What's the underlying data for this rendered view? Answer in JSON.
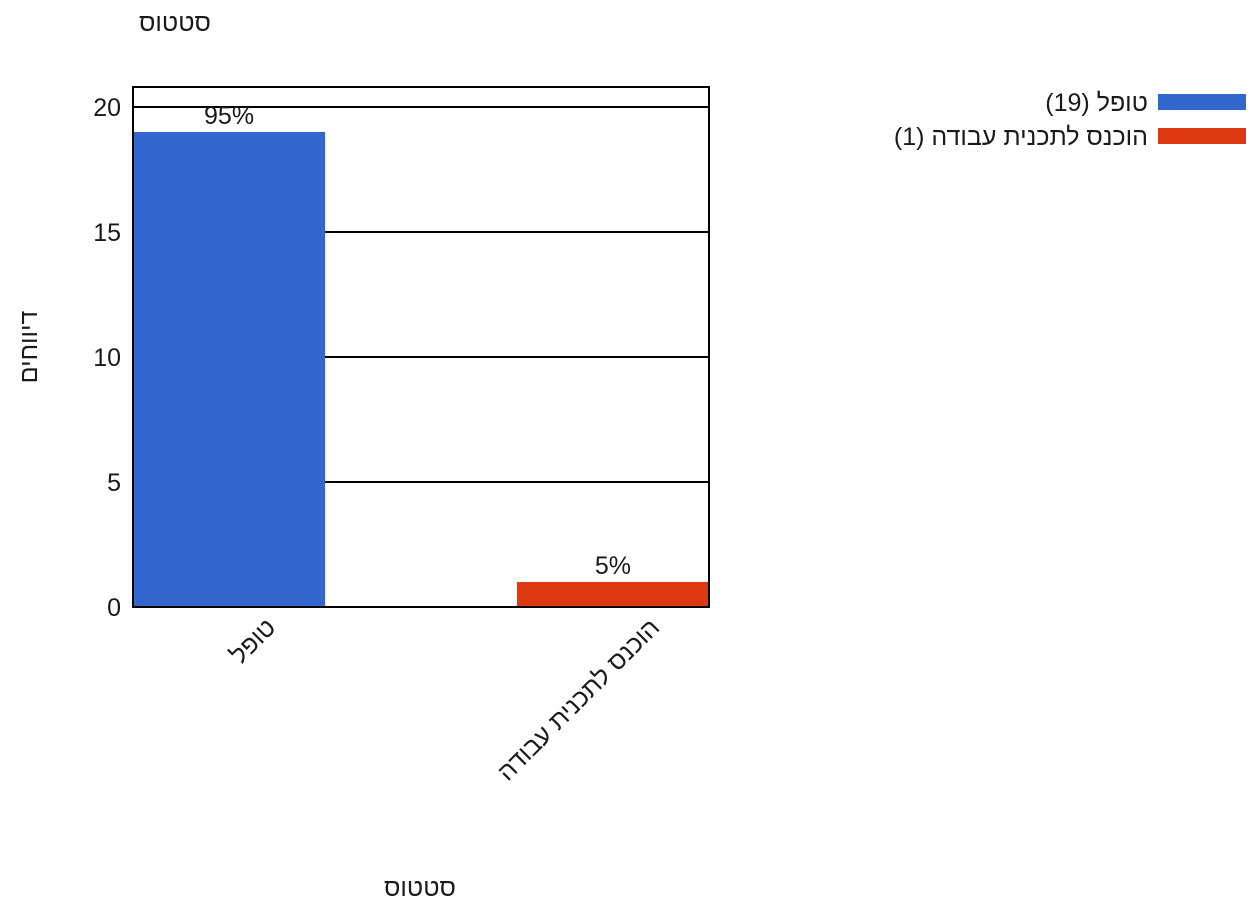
{
  "chart_data": {
    "type": "bar",
    "title": "סטטוס",
    "xlabel": "סטטוס",
    "ylabel": "דיווחים",
    "categories": [
      "טופל",
      "הוכנס לתכנית עבודה"
    ],
    "values": [
      19,
      1
    ],
    "data_labels": [
      "95%",
      "5%"
    ],
    "colors": [
      "#3366cc",
      "#dc3912"
    ],
    "ylim": [
      0,
      20.8
    ],
    "yticks": [
      0,
      5,
      10,
      15,
      20
    ],
    "grid": true,
    "legend": {
      "placement": "top-right",
      "entries": [
        "טופל (19)",
        "הוכנס לתכנית עבודה (1)"
      ]
    }
  }
}
